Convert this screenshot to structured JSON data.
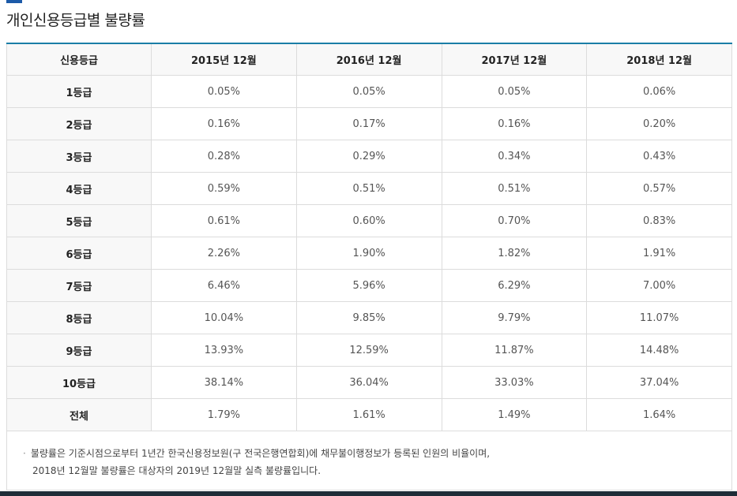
{
  "page": {
    "title": "개인신용등급별 불량률"
  },
  "table": {
    "headers": [
      "신용등급",
      "2015년 12월",
      "2016년 12월",
      "2017년 12월",
      "2018년 12월"
    ],
    "rows": [
      {
        "grade": "1등급",
        "values": [
          "0.05%",
          "0.05%",
          "0.05%",
          "0.06%"
        ]
      },
      {
        "grade": "2등급",
        "values": [
          "0.16%",
          "0.17%",
          "0.16%",
          "0.20%"
        ]
      },
      {
        "grade": "3등급",
        "values": [
          "0.28%",
          "0.29%",
          "0.34%",
          "0.43%"
        ]
      },
      {
        "grade": "4등급",
        "values": [
          "0.59%",
          "0.51%",
          "0.51%",
          "0.57%"
        ]
      },
      {
        "grade": "5등급",
        "values": [
          "0.61%",
          "0.60%",
          "0.70%",
          "0.83%"
        ]
      },
      {
        "grade": "6등급",
        "values": [
          "2.26%",
          "1.90%",
          "1.82%",
          "1.91%"
        ]
      },
      {
        "grade": "7등급",
        "values": [
          "6.46%",
          "5.96%",
          "6.29%",
          "7.00%"
        ]
      },
      {
        "grade": "8등급",
        "values": [
          "10.04%",
          "9.85%",
          "9.79%",
          "11.07%"
        ]
      },
      {
        "grade": "9등급",
        "values": [
          "13.93%",
          "12.59%",
          "11.87%",
          "14.48%"
        ]
      },
      {
        "grade": "10등급",
        "values": [
          "38.14%",
          "36.04%",
          "33.03%",
          "37.04%"
        ]
      },
      {
        "grade": "전체",
        "values": [
          "1.79%",
          "1.61%",
          "1.49%",
          "1.64%"
        ]
      }
    ]
  },
  "note": {
    "bullet": "·",
    "line1": "불량률은 기준시점으로부터 1년간 한국신용정보원(구 전국은행연합회)에 채무불이행정보가 등록된 인원의 비율이며,",
    "line2": "2018년 12월말 불량률은 대상자의 2019년 12월말 실측 불량률입니다."
  },
  "colors": {
    "title_accent": "#1c5aa8",
    "table_top_border": "#1a7ea6",
    "header_bg": "#f8f8f8",
    "grid": "#dcdcdc",
    "bottom_bar": "#1f2d38"
  }
}
